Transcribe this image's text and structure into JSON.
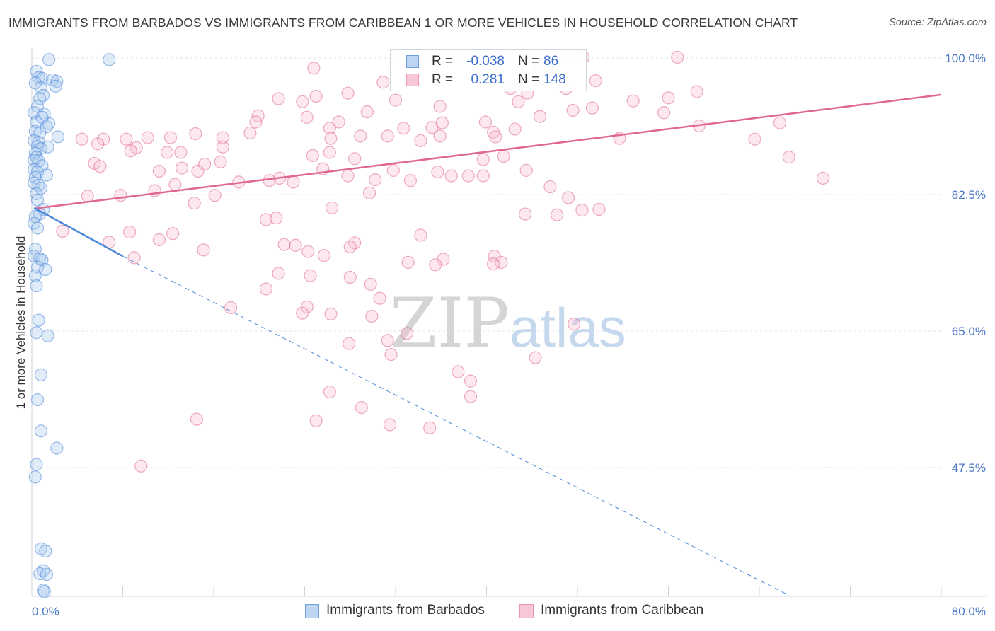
{
  "header": {
    "title": "IMMIGRANTS FROM BARBADOS VS IMMIGRANTS FROM CARIBBEAN 1 OR MORE VEHICLES IN HOUSEHOLD CORRELATION CHART",
    "source": "Source: ZipAtlas.com"
  },
  "watermark": {
    "zip": "ZIP",
    "atlas": "atlas"
  },
  "legend": {
    "barbados": {
      "r_label": "R =",
      "r_value": "-0.038",
      "n_label": "N =",
      "n_value": "86",
      "name": "Immigrants from Barbados"
    },
    "caribbean": {
      "r_label": "R =",
      "r_value": "0.281",
      "n_label": "N =",
      "n_value": "148",
      "name": "Immigrants from Caribbean"
    }
  },
  "colors": {
    "barbados": "#4a86d8",
    "barbados_fill": "#a9c8ee",
    "caribbean": "#e06890",
    "caribbean_fill": "#f5bccd",
    "tick_text": "#4a78c8"
  },
  "chart_data": {
    "type": "scatter",
    "title": "IMMIGRANTS FROM BARBADOS VS IMMIGRANTS FROM CARIBBEAN 1 OR MORE VEHICLES IN HOUSEHOLD CORRELATION CHART",
    "xlabel": "",
    "ylabel": "1 or more Vehicles in Household",
    "xlim": [
      0,
      80
    ],
    "ylim": [
      31,
      102
    ],
    "x_tick_labels": [
      "0.0%",
      "80.0%"
    ],
    "y_ticks": [
      47.5,
      65.0,
      82.5,
      100.0
    ],
    "y_tick_labels": [
      "47.5%",
      "65.0%",
      "82.5%",
      "100.0%"
    ],
    "grid": true,
    "legend_position": "top-center",
    "series": [
      {
        "name": "Immigrants from Barbados",
        "points": [
          [
            6.8,
            99.8
          ],
          [
            1.5,
            99.8
          ],
          [
            0.4,
            98.3
          ],
          [
            0.6,
            97.5
          ],
          [
            0.9,
            97.4
          ],
          [
            1.8,
            97.2
          ],
          [
            2.2,
            97.0
          ],
          [
            0.3,
            96.8
          ],
          [
            0.8,
            96.2
          ],
          [
            2.1,
            96.4
          ],
          [
            1.0,
            95.2
          ],
          [
            0.7,
            94.8
          ],
          [
            0.5,
            93.8
          ],
          [
            0.2,
            93.0
          ],
          [
            1.1,
            92.8
          ],
          [
            0.4,
            91.8
          ],
          [
            1.3,
            91.2
          ],
          [
            0.3,
            90.6
          ],
          [
            0.7,
            90.4
          ],
          [
            0.2,
            89.4
          ],
          [
            0.6,
            89.2
          ],
          [
            0.5,
            88.7
          ],
          [
            0.8,
            88.4
          ],
          [
            0.3,
            87.8
          ],
          [
            0.4,
            87.3
          ],
          [
            1.4,
            88.6
          ],
          [
            0.2,
            86.9
          ],
          [
            0.6,
            86.8
          ],
          [
            0.9,
            86.2
          ],
          [
            0.2,
            85.7
          ],
          [
            0.5,
            85.4
          ],
          [
            1.3,
            85.0
          ],
          [
            0.3,
            84.7
          ],
          [
            0.2,
            84.0
          ],
          [
            0.6,
            83.7
          ],
          [
            0.8,
            83.3
          ],
          [
            0.4,
            82.6
          ],
          [
            0.5,
            81.8
          ],
          [
            1.0,
            80.6
          ],
          [
            0.7,
            80.0
          ],
          [
            0.3,
            79.7
          ],
          [
            0.2,
            78.8
          ],
          [
            0.5,
            78.2
          ],
          [
            0.3,
            75.5
          ],
          [
            0.2,
            74.6
          ],
          [
            0.7,
            74.3
          ],
          [
            0.9,
            74.1
          ],
          [
            0.5,
            73.2
          ],
          [
            1.2,
            72.9
          ],
          [
            0.3,
            72.1
          ],
          [
            0.4,
            70.8
          ],
          [
            0.6,
            66.4
          ],
          [
            0.4,
            64.8
          ],
          [
            1.4,
            64.4
          ],
          [
            0.8,
            59.4
          ],
          [
            0.5,
            56.2
          ],
          [
            0.8,
            52.2
          ],
          [
            2.2,
            50.0
          ],
          [
            0.4,
            47.9
          ],
          [
            0.3,
            46.3
          ],
          [
            0.8,
            37.1
          ],
          [
            1.2,
            36.8
          ],
          [
            1.0,
            34.3
          ],
          [
            0.7,
            33.9
          ],
          [
            1.3,
            33.8
          ],
          [
            1.0,
            31.8
          ],
          [
            1.1,
            31.6
          ],
          [
            2.3,
            89.9
          ],
          [
            1.5,
            91.6
          ],
          [
            0.9,
            92.4
          ]
        ]
      },
      {
        "name": "Immigrants from Caribbean",
        "points": [
          [
            48.5,
            100.1
          ],
          [
            56.8,
            100.1
          ],
          [
            44.6,
            98.7
          ],
          [
            24.8,
            98.7
          ],
          [
            49.6,
            97.1
          ],
          [
            30.9,
            96.9
          ],
          [
            47.0,
            96.1
          ],
          [
            42.1,
            96.1
          ],
          [
            58.5,
            95.7
          ],
          [
            43.6,
            95.5
          ],
          [
            25.0,
            95.1
          ],
          [
            32.0,
            94.6
          ],
          [
            42.8,
            94.4
          ],
          [
            23.8,
            94.4
          ],
          [
            21.7,
            94.8
          ],
          [
            27.8,
            95.5
          ],
          [
            52.9,
            94.5
          ],
          [
            56.0,
            94.9
          ],
          [
            35.9,
            93.8
          ],
          [
            49.3,
            93.6
          ],
          [
            47.6,
            93.3
          ],
          [
            29.5,
            93.1
          ],
          [
            55.6,
            93.0
          ],
          [
            19.9,
            92.6
          ],
          [
            24.2,
            92.4
          ],
          [
            44.7,
            92.5
          ],
          [
            19.7,
            91.8
          ],
          [
            27.0,
            91.8
          ],
          [
            39.9,
            91.8
          ],
          [
            36.1,
            91.7
          ],
          [
            65.8,
            91.7
          ],
          [
            58.7,
            91.3
          ],
          [
            35.2,
            91.1
          ],
          [
            26.2,
            91.0
          ],
          [
            32.7,
            91.0
          ],
          [
            42.5,
            90.9
          ],
          [
            40.6,
            90.5
          ],
          [
            19.2,
            90.4
          ],
          [
            14.4,
            90.3
          ],
          [
            28.9,
            90.0
          ],
          [
            31.3,
            90.0
          ],
          [
            40.8,
            89.9
          ],
          [
            35.9,
            90.0
          ],
          [
            16.8,
            89.8
          ],
          [
            12.2,
            89.8
          ],
          [
            10.2,
            89.8
          ],
          [
            26.3,
            89.7
          ],
          [
            51.7,
            89.7
          ],
          [
            63.6,
            89.6
          ],
          [
            8.3,
            89.6
          ],
          [
            6.3,
            89.6
          ],
          [
            4.4,
            89.6
          ],
          [
            34.2,
            89.4
          ],
          [
            5.8,
            89.0
          ],
          [
            16.8,
            88.6
          ],
          [
            9.2,
            88.5
          ],
          [
            8.7,
            88.1
          ],
          [
            11.9,
            87.9
          ],
          [
            26.2,
            87.9
          ],
          [
            13.1,
            87.9
          ],
          [
            24.7,
            87.5
          ],
          [
            41.5,
            87.4
          ],
          [
            28.4,
            87.1
          ],
          [
            66.6,
            87.3
          ],
          [
            39.7,
            87.0
          ],
          [
            16.6,
            86.7
          ],
          [
            5.5,
            86.5
          ],
          [
            15.2,
            86.4
          ],
          [
            6.0,
            86.1
          ],
          [
            13.2,
            85.9
          ],
          [
            25.6,
            85.8
          ],
          [
            31.8,
            85.6
          ],
          [
            14.6,
            85.5
          ],
          [
            11.2,
            85.5
          ],
          [
            43.5,
            85.6
          ],
          [
            35.7,
            85.4
          ],
          [
            36.9,
            84.9
          ],
          [
            27.8,
            84.9
          ],
          [
            39.7,
            84.9
          ],
          [
            38.4,
            84.9
          ],
          [
            21.8,
            84.6
          ],
          [
            20.9,
            84.3
          ],
          [
            30.2,
            84.4
          ],
          [
            33.3,
            84.3
          ],
          [
            69.6,
            84.6
          ],
          [
            23.0,
            84.1
          ],
          [
            12.6,
            83.8
          ],
          [
            18.2,
            84.1
          ],
          [
            45.6,
            83.5
          ],
          [
            29.7,
            82.7
          ],
          [
            10.8,
            83.0
          ],
          [
            7.8,
            82.4
          ],
          [
            16.1,
            82.4
          ],
          [
            4.9,
            82.3
          ],
          [
            47.2,
            82.1
          ],
          [
            14.3,
            81.4
          ],
          [
            26.4,
            80.8
          ],
          [
            48.4,
            80.5
          ],
          [
            46.2,
            79.9
          ],
          [
            49.9,
            80.6
          ],
          [
            43.4,
            80.0
          ],
          [
            21.5,
            79.5
          ],
          [
            20.6,
            79.3
          ],
          [
            2.7,
            77.8
          ],
          [
            8.6,
            77.7
          ],
          [
            12.4,
            77.5
          ],
          [
            34.2,
            77.3
          ],
          [
            11.2,
            76.7
          ],
          [
            6.8,
            76.4
          ],
          [
            22.2,
            76.1
          ],
          [
            23.2,
            76.0
          ],
          [
            28.4,
            76.3
          ],
          [
            28.0,
            75.8
          ],
          [
            15.1,
            75.4
          ],
          [
            24.3,
            75.2
          ],
          [
            25.7,
            74.7
          ],
          [
            40.7,
            74.6
          ],
          [
            9.0,
            74.4
          ],
          [
            36.2,
            74.2
          ],
          [
            33.1,
            73.8
          ],
          [
            41.3,
            73.8
          ],
          [
            40.6,
            73.6
          ],
          [
            35.5,
            73.5
          ],
          [
            21.7,
            72.4
          ],
          [
            28.0,
            71.9
          ],
          [
            29.8,
            71.0
          ],
          [
            20.6,
            70.4
          ],
          [
            30.6,
            69.2
          ],
          [
            24.2,
            68.1
          ],
          [
            17.5,
            68.0
          ],
          [
            23.8,
            67.3
          ],
          [
            26.3,
            67.2
          ],
          [
            29.9,
            66.9
          ],
          [
            47.7,
            65.9
          ],
          [
            33.0,
            64.7
          ],
          [
            31.3,
            63.8
          ],
          [
            27.9,
            63.4
          ],
          [
            31.6,
            62.0
          ],
          [
            44.3,
            61.6
          ],
          [
            37.5,
            59.8
          ],
          [
            38.6,
            58.6
          ],
          [
            26.2,
            57.2
          ],
          [
            38.6,
            56.6
          ],
          [
            29.0,
            55.2
          ],
          [
            14.5,
            53.7
          ],
          [
            25.0,
            53.5
          ],
          [
            31.5,
            53.0
          ],
          [
            35.0,
            52.6
          ],
          [
            9.6,
            47.7
          ],
          [
            24.5,
            72.1
          ]
        ]
      }
    ],
    "trend_lines": [
      {
        "series": "Immigrants from Barbados",
        "solid": [
          [
            0.2,
            80.8
          ],
          [
            8.0,
            74.6
          ]
        ],
        "dashed": [
          [
            8.0,
            74.6
          ],
          [
            66.5,
            31.2
          ]
        ]
      },
      {
        "series": "Immigrants from Caribbean",
        "solid": [
          [
            0.2,
            80.7
          ],
          [
            80.0,
            95.3
          ]
        ]
      }
    ]
  }
}
